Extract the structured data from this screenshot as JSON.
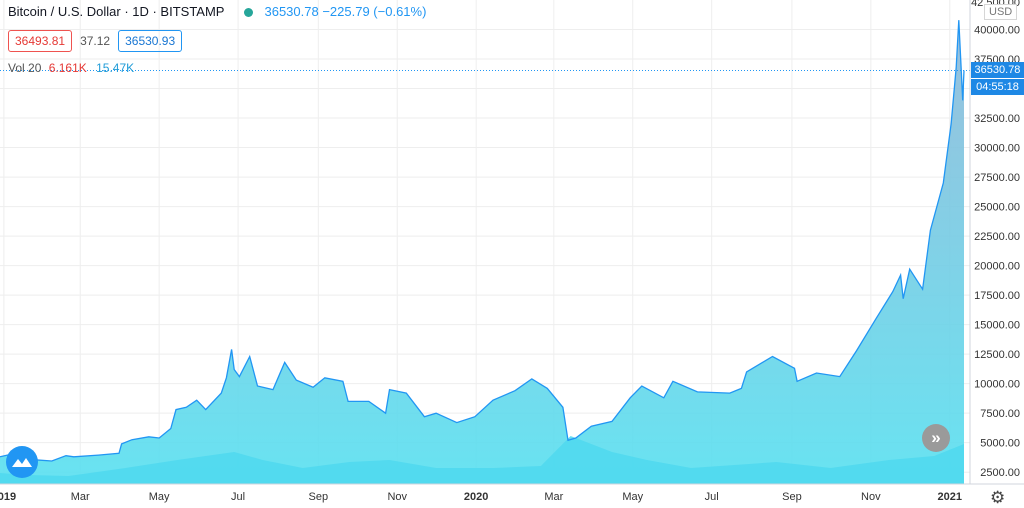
{
  "legend": {
    "symbol": "Bitcoin / U.S. Dollar · 1D · BITSTAMP",
    "last": "36530.78",
    "change": "−225.79 (−0.61%)"
  },
  "quote": {
    "bid": "36493.81",
    "spread": "37.12",
    "ask": "36530.93"
  },
  "volume": {
    "label": "Vol 20",
    "value1": "6.161K",
    "value2": "15.47K"
  },
  "axis": {
    "currency": "USD",
    "last_price_tag": "36530.78",
    "countdown_tag": "04:55:18"
  },
  "colors": {
    "line": "#2196f3",
    "area_top": "#8fb8d8",
    "area_bottom": "#57e0f0",
    "volume": "#4fd8ee",
    "grid": "#eeeeee"
  },
  "icons": {
    "logo": "tradingview-logo-icon",
    "scroll": "double-chevron-right-icon",
    "settings": "gear-icon"
  },
  "chart_data": {
    "type": "area",
    "title": "Bitcoin / U.S. Dollar",
    "ylim": [
      1500,
      42500
    ],
    "y_ticks": [
      2500,
      5000,
      7500,
      10000,
      12500,
      15000,
      17500,
      20000,
      22500,
      25000,
      27500,
      30000,
      32500,
      35000,
      37500,
      40000
    ],
    "y_tick_labels": [
      "2500.00",
      "5000.00",
      "7500.00",
      "10000.00",
      "12500.00",
      "15000.00",
      "17500.00",
      "20000.00",
      "22500.00",
      "25000.00",
      "27500.00",
      "30000.00",
      "32500.00",
      "35000.00",
      "37500.00",
      "40000.00"
    ],
    "top_partial_label": "42 500.00",
    "x_ticks": [
      {
        "date": "2019-01-01",
        "label": "2019",
        "bold": true
      },
      {
        "date": "2019-03-01",
        "label": "Mar"
      },
      {
        "date": "2019-05-01",
        "label": "May"
      },
      {
        "date": "2019-07-01",
        "label": "Jul"
      },
      {
        "date": "2019-09-01",
        "label": "Sep"
      },
      {
        "date": "2019-11-01",
        "label": "Nov"
      },
      {
        "date": "2020-01-01",
        "label": "2020",
        "bold": true
      },
      {
        "date": "2020-03-01",
        "label": "Mar"
      },
      {
        "date": "2020-05-01",
        "label": "May"
      },
      {
        "date": "2020-07-01",
        "label": "Jul"
      },
      {
        "date": "2020-09-01",
        "label": "Sep"
      },
      {
        "date": "2020-11-01",
        "label": "Nov"
      },
      {
        "date": "2021-01-01",
        "label": "2021",
        "bold": true
      }
    ],
    "x_range": [
      "2018-12-29",
      "2021-01-12"
    ],
    "series": [
      {
        "name": "BTCUSD",
        "points": [
          [
            "2018-12-29",
            3800
          ],
          [
            "2019-01-08",
            4050
          ],
          [
            "2019-01-10",
            3650
          ],
          [
            "2019-01-25",
            3550
          ],
          [
            "2019-02-07",
            3450
          ],
          [
            "2019-02-18",
            3900
          ],
          [
            "2019-02-24",
            3800
          ],
          [
            "2019-03-15",
            3950
          ],
          [
            "2019-03-31",
            4100
          ],
          [
            "2019-04-02",
            4900
          ],
          [
            "2019-04-10",
            5250
          ],
          [
            "2019-04-23",
            5500
          ],
          [
            "2019-05-01",
            5400
          ],
          [
            "2019-05-10",
            6200
          ],
          [
            "2019-05-14",
            7800
          ],
          [
            "2019-05-22",
            8000
          ],
          [
            "2019-05-30",
            8600
          ],
          [
            "2019-06-06",
            7800
          ],
          [
            "2019-06-18",
            9200
          ],
          [
            "2019-06-22",
            10500
          ],
          [
            "2019-06-26",
            12900
          ],
          [
            "2019-06-28",
            11200
          ],
          [
            "2019-07-02",
            10600
          ],
          [
            "2019-07-10",
            12300
          ],
          [
            "2019-07-16",
            9800
          ],
          [
            "2019-07-28",
            9500
          ],
          [
            "2019-08-06",
            11800
          ],
          [
            "2019-08-15",
            10300
          ],
          [
            "2019-08-28",
            9700
          ],
          [
            "2019-09-06",
            10500
          ],
          [
            "2019-09-20",
            10200
          ],
          [
            "2019-09-24",
            8500
          ],
          [
            "2019-10-10",
            8500
          ],
          [
            "2019-10-23",
            7500
          ],
          [
            "2019-10-26",
            9500
          ],
          [
            "2019-11-08",
            9200
          ],
          [
            "2019-11-22",
            7200
          ],
          [
            "2019-12-01",
            7500
          ],
          [
            "2019-12-17",
            6700
          ],
          [
            "2019-12-31",
            7200
          ],
          [
            "2020-01-14",
            8600
          ],
          [
            "2020-01-31",
            9400
          ],
          [
            "2020-02-13",
            10400
          ],
          [
            "2020-02-25",
            9600
          ],
          [
            "2020-03-08",
            8000
          ],
          [
            "2020-03-12",
            5200
          ],
          [
            "2020-03-18",
            5400
          ],
          [
            "2020-03-30",
            6400
          ],
          [
            "2020-04-15",
            6800
          ],
          [
            "2020-04-29",
            8800
          ],
          [
            "2020-05-08",
            9800
          ],
          [
            "2020-05-25",
            8800
          ],
          [
            "2020-06-01",
            10200
          ],
          [
            "2020-06-20",
            9300
          ],
          [
            "2020-07-15",
            9200
          ],
          [
            "2020-07-24",
            9600
          ],
          [
            "2020-07-28",
            11000
          ],
          [
            "2020-08-17",
            12300
          ],
          [
            "2020-09-03",
            11300
          ],
          [
            "2020-09-05",
            10200
          ],
          [
            "2020-09-20",
            10900
          ],
          [
            "2020-10-08",
            10600
          ],
          [
            "2020-10-21",
            12800
          ],
          [
            "2020-11-05",
            15500
          ],
          [
            "2020-11-18",
            17800
          ],
          [
            "2020-11-24",
            19200
          ],
          [
            "2020-11-26",
            17200
          ],
          [
            "2020-12-01",
            19700
          ],
          [
            "2020-12-11",
            18000
          ],
          [
            "2020-12-17",
            23000
          ],
          [
            "2020-12-27",
            27000
          ],
          [
            "2021-01-02",
            32000
          ],
          [
            "2021-01-06",
            36800
          ],
          [
            "2021-01-08",
            40800
          ],
          [
            "2021-01-11",
            34000
          ],
          [
            "2021-01-12",
            36530
          ]
        ]
      }
    ],
    "volume": [
      [
        "2018-12-29",
        0.55
      ],
      [
        "2019-01-20",
        0.45
      ],
      [
        "2019-02-20",
        0.4
      ],
      [
        "2019-04-05",
        0.8
      ],
      [
        "2019-05-15",
        1.2
      ],
      [
        "2019-06-28",
        1.6
      ],
      [
        "2019-07-20",
        1.2
      ],
      [
        "2019-08-20",
        0.8
      ],
      [
        "2019-09-25",
        1.1
      ],
      [
        "2019-10-26",
        1.2
      ],
      [
        "2019-12-01",
        0.8
      ],
      [
        "2020-01-15",
        0.8
      ],
      [
        "2020-02-20",
        0.9
      ],
      [
        "2020-03-14",
        2.4
      ],
      [
        "2020-04-15",
        1.6
      ],
      [
        "2020-05-12",
        1.2
      ],
      [
        "2020-06-15",
        0.8
      ],
      [
        "2020-07-30",
        1.0
      ],
      [
        "2020-08-20",
        1.1
      ],
      [
        "2020-10-01",
        0.8
      ],
      [
        "2020-11-15",
        1.2
      ],
      [
        "2020-12-20",
        1.4
      ],
      [
        "2021-01-12",
        2.0
      ]
    ]
  }
}
